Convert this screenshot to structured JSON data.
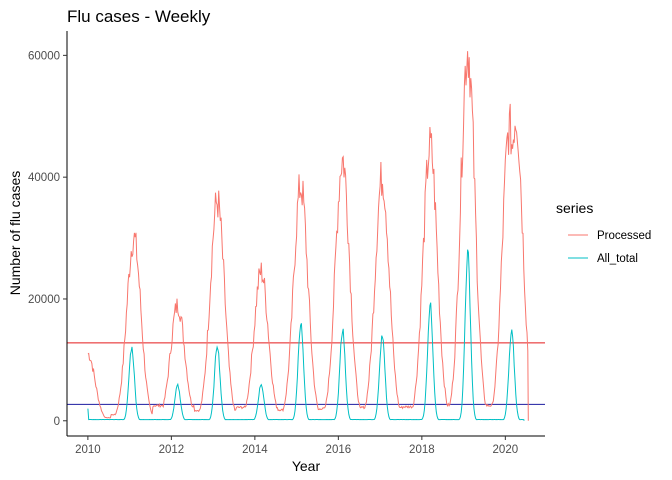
{
  "chart_data": {
    "type": "line",
    "title": "Flu cases - Weekly",
    "xlabel": "Year",
    "ylabel": "Number of flu cases",
    "xlim": [
      2009.5,
      2020.95
    ],
    "ylim": [
      -2500,
      64000
    ],
    "x_ticks": [
      2010,
      2012,
      2014,
      2016,
      2018,
      2020
    ],
    "y_ticks": [
      0,
      20000,
      40000,
      60000
    ],
    "y_tick_labels": [
      "0",
      "20000",
      "40000",
      "60000"
    ],
    "grid": false,
    "legend": {
      "title": "series",
      "position": "right",
      "entries": [
        "Processed",
        "All_total"
      ]
    },
    "hlines": [
      {
        "y": 12800,
        "color": "#e41a1c"
      },
      {
        "y": 2700,
        "color": "#1c1ca0"
      }
    ],
    "series": [
      {
        "name": "Processed",
        "color": "#f8766d",
        "peaks": [
          {
            "x": 2010.0,
            "y": 11000
          },
          {
            "x": 2011.1,
            "y": 30000
          },
          {
            "x": 2012.15,
            "y": 19000
          },
          {
            "x": 2013.1,
            "y": 36000
          },
          {
            "x": 2014.15,
            "y": 24500
          },
          {
            "x": 2015.1,
            "y": 38500
          },
          {
            "x": 2016.1,
            "y": 43000
          },
          {
            "x": 2017.05,
            "y": 40000
          },
          {
            "x": 2018.2,
            "y": 45000
          },
          {
            "x": 2019.1,
            "y": 61000
          },
          {
            "x": 2020.1,
            "y": 48000
          },
          {
            "x": 2020.25,
            "y": 50000
          }
        ],
        "troughs": [
          500,
          1000,
          2500,
          1700,
          2200,
          1800,
          2000,
          2200,
          2300,
          2600,
          2500,
          0
        ]
      },
      {
        "name": "All_total",
        "color": "#00bfc4",
        "peaks": [
          {
            "x": 2011.05,
            "y": 12000
          },
          {
            "x": 2012.15,
            "y": 5800
          },
          {
            "x": 2013.1,
            "y": 12500
          },
          {
            "x": 2014.15,
            "y": 6000
          },
          {
            "x": 2015.1,
            "y": 16000
          },
          {
            "x": 2016.1,
            "y": 15000
          },
          {
            "x": 2017.05,
            "y": 14000
          },
          {
            "x": 2018.2,
            "y": 19000
          },
          {
            "x": 2019.1,
            "y": 27500
          },
          {
            "x": 2020.15,
            "y": 14500
          }
        ],
        "start": {
          "x": 2010.0,
          "y": 2000
        },
        "trough": 200,
        "end": {
          "x": 2020.45,
          "y": 0
        }
      }
    ]
  }
}
